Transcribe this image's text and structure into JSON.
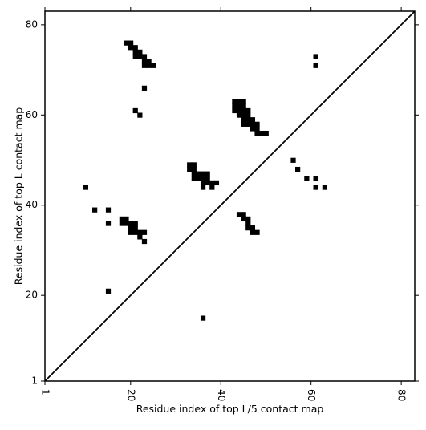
{
  "chart_data": {
    "type": "heatmap",
    "title": "",
    "xlabel": "Residue index of top L/5 contact map",
    "ylabel": "Residue index of top L contact map",
    "xlim": [
      1,
      83
    ],
    "ylim": [
      1,
      83
    ],
    "x_ticks": [
      1,
      20,
      40,
      60,
      80
    ],
    "y_ticks": [
      1,
      20,
      40,
      60,
      80
    ],
    "x_tick_labels": [
      "1",
      "20",
      "40",
      "60",
      "80"
    ],
    "y_tick_labels": [
      "1",
      "20",
      "40",
      "60",
      "80"
    ],
    "x_tick_label_rotation": "vertical",
    "grid": false,
    "diagonal_line": true,
    "cell_color": "#000000",
    "line_color": "#000000",
    "background": "#ffffff",
    "cells": [
      [
        19,
        76
      ],
      [
        20,
        76
      ],
      [
        20,
        75
      ],
      [
        21,
        75
      ],
      [
        21,
        74
      ],
      [
        22,
        74
      ],
      [
        21,
        73
      ],
      [
        22,
        73
      ],
      [
        23,
        73
      ],
      [
        23,
        72
      ],
      [
        24,
        72
      ],
      [
        23,
        71
      ],
      [
        24,
        71
      ],
      [
        25,
        71
      ],
      [
        23,
        66
      ],
      [
        21,
        61
      ],
      [
        22,
        60
      ],
      [
        43,
        63
      ],
      [
        44,
        63
      ],
      [
        45,
        63
      ],
      [
        43,
        62
      ],
      [
        44,
        62
      ],
      [
        45,
        62
      ],
      [
        43,
        61
      ],
      [
        44,
        61
      ],
      [
        45,
        61
      ],
      [
        46,
        61
      ],
      [
        44,
        60
      ],
      [
        45,
        60
      ],
      [
        46,
        60
      ],
      [
        45,
        59
      ],
      [
        46,
        59
      ],
      [
        47,
        59
      ],
      [
        45,
        58
      ],
      [
        46,
        58
      ],
      [
        47,
        58
      ],
      [
        48,
        58
      ],
      [
        47,
        57
      ],
      [
        48,
        57
      ],
      [
        48,
        56
      ],
      [
        49,
        56
      ],
      [
        50,
        56
      ],
      [
        61,
        73
      ],
      [
        61,
        71
      ],
      [
        33,
        49
      ],
      [
        34,
        49
      ],
      [
        33,
        48
      ],
      [
        34,
        48
      ],
      [
        34,
        47
      ],
      [
        35,
        47
      ],
      [
        36,
        47
      ],
      [
        37,
        47
      ],
      [
        34,
        46
      ],
      [
        35,
        46
      ],
      [
        36,
        46
      ],
      [
        37,
        46
      ],
      [
        36,
        45
      ],
      [
        37,
        45
      ],
      [
        38,
        45
      ],
      [
        39,
        45
      ],
      [
        36,
        44
      ],
      [
        38,
        44
      ],
      [
        56,
        50
      ],
      [
        57,
        48
      ],
      [
        59,
        46
      ],
      [
        61,
        46
      ],
      [
        61,
        44
      ],
      [
        63,
        44
      ],
      [
        10,
        44
      ],
      [
        12,
        39
      ],
      [
        15,
        39
      ],
      [
        15,
        36
      ],
      [
        18,
        37
      ],
      [
        19,
        37
      ],
      [
        18,
        36
      ],
      [
        19,
        36
      ],
      [
        20,
        36
      ],
      [
        21,
        36
      ],
      [
        20,
        35
      ],
      [
        21,
        35
      ],
      [
        20,
        34
      ],
      [
        21,
        34
      ],
      [
        22,
        34
      ],
      [
        23,
        34
      ],
      [
        22,
        33
      ],
      [
        23,
        32
      ],
      [
        44,
        38
      ],
      [
        45,
        38
      ],
      [
        45,
        37
      ],
      [
        46,
        37
      ],
      [
        46,
        36
      ],
      [
        46,
        35
      ],
      [
        47,
        35
      ],
      [
        47,
        34
      ],
      [
        48,
        34
      ],
      [
        15,
        21
      ],
      [
        36,
        15
      ]
    ]
  }
}
